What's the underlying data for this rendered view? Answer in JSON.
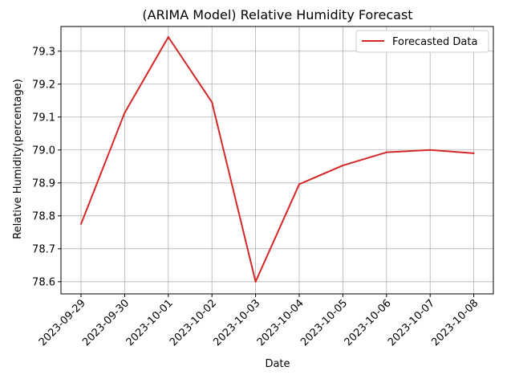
{
  "chart_data": {
    "type": "line",
    "title": "(ARIMA Model) Relative Humidity Forecast",
    "xlabel": "Date",
    "ylabel": "Relative Humidity(percentage)",
    "categories": [
      "2023-09-29",
      "2023-09-30",
      "2023-10-01",
      "2023-10-02",
      "2023-10-03",
      "2023-10-04",
      "2023-10-05",
      "2023-10-06",
      "2023-10-07",
      "2023-10-08"
    ],
    "yticks": [
      "78.6",
      "78.7",
      "78.8",
      "78.9",
      "79.0",
      "79.1",
      "79.2",
      "79.3"
    ],
    "ylim": [
      78.563,
      79.375
    ],
    "grid": true,
    "legend_position": "top-right",
    "series": [
      {
        "name": "Forecasted Data",
        "color": "#d62728",
        "values": [
          78.775,
          79.113,
          79.343,
          79.145,
          78.6,
          78.896,
          78.953,
          78.993,
          79.0,
          78.99
        ]
      }
    ]
  }
}
